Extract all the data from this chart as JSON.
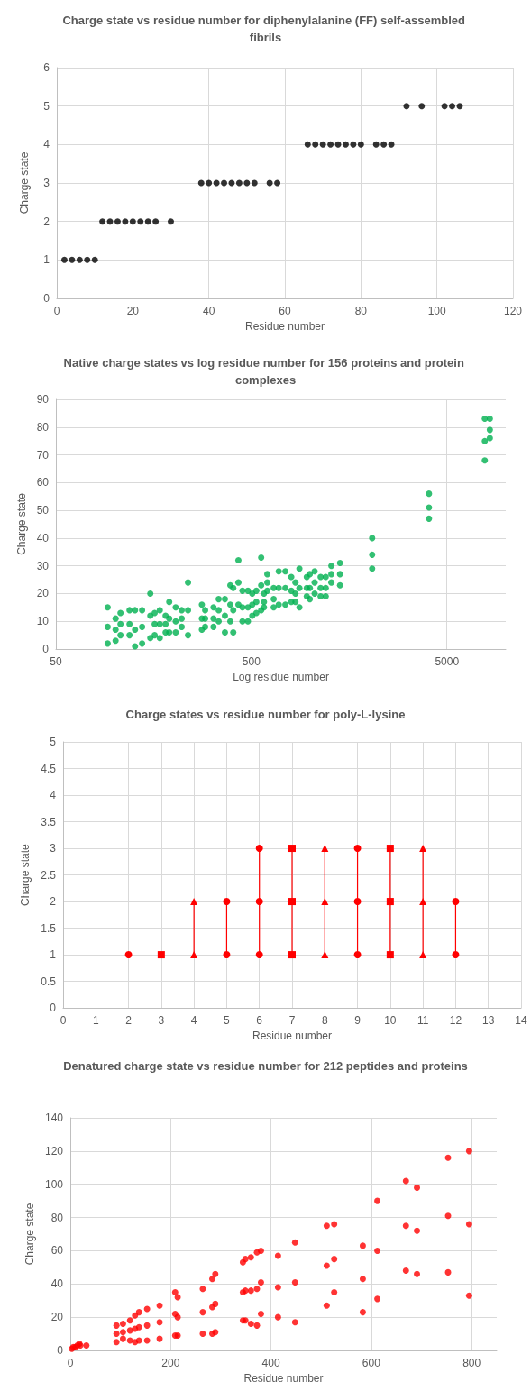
{
  "chart_data": [
    {
      "type": "scatter",
      "title": "Charge state vs residue number for diphenylalanine (FF) self-assembled fibrils",
      "xlabel": "Residue number",
      "ylabel": "Charge state",
      "color": "#000000",
      "marker": "circle",
      "grid": true,
      "xlim": [
        0,
        120
      ],
      "xticks": [
        0,
        20,
        40,
        60,
        80,
        100,
        120
      ],
      "ylim": [
        0,
        6
      ],
      "yticks": [
        0,
        1,
        2,
        3,
        4,
        5,
        6
      ],
      "x": [
        2,
        4,
        6,
        8,
        10,
        12,
        14,
        16,
        18,
        20,
        22,
        24,
        26,
        30,
        38,
        40,
        42,
        44,
        46,
        48,
        50,
        52,
        56,
        58,
        66,
        68,
        70,
        72,
        74,
        76,
        78,
        80,
        84,
        86,
        88,
        92,
        96,
        102,
        104,
        106
      ],
      "values": [
        1,
        1,
        1,
        1,
        1,
        2,
        2,
        2,
        2,
        2,
        2,
        2,
        2,
        2,
        3,
        3,
        3,
        3,
        3,
        3,
        3,
        3,
        3,
        3,
        4,
        4,
        4,
        4,
        4,
        4,
        4,
        4,
        4,
        4,
        4,
        5,
        5,
        5,
        5,
        5
      ]
    },
    {
      "type": "scatter",
      "title": "Native charge states vs log residue number for 156 proteins and protein complexes",
      "xlabel": "Log residue number",
      "ylabel": "Charge state",
      "color": "#00b050",
      "marker": "circle",
      "grid": true,
      "log": "x",
      "xlim": [
        50,
        10000
      ],
      "xticks": [
        50,
        500,
        5000
      ],
      "ylim": [
        0,
        90
      ],
      "yticks": [
        0,
        10,
        20,
        30,
        40,
        50,
        60,
        70,
        80,
        90
      ],
      "x": [
        92,
        92,
        92,
        101,
        101,
        101,
        107,
        107,
        107,
        119,
        119,
        119,
        127,
        127,
        127,
        138,
        138,
        138,
        152,
        152,
        152,
        160,
        160,
        160,
        170,
        170,
        170,
        182,
        182,
        182,
        190,
        190,
        190,
        205,
        205,
        205,
        220,
        220,
        220,
        237,
        237,
        237,
        279,
        279,
        279,
        290,
        290,
        290,
        320,
        320,
        320,
        340,
        340,
        340,
        366,
        366,
        366,
        390,
        390,
        390,
        404,
        404,
        404,
        429,
        429,
        429,
        450,
        450,
        450,
        480,
        480,
        480,
        505,
        505,
        505,
        530,
        530,
        530,
        561,
        561,
        561,
        580,
        580,
        580,
        603,
        603,
        603,
        650,
        650,
        650,
        690,
        690,
        690,
        746,
        746,
        746,
        800,
        800,
        800,
        840,
        840,
        840,
        880,
        880,
        880,
        960,
        960,
        960,
        995,
        995,
        995,
        1053,
        1053,
        1053,
        1130,
        1130,
        1130,
        1200,
        1200,
        1200,
        1282,
        1282,
        1282,
        1420,
        1420,
        1420,
        2073,
        2073,
        2073,
        4050,
        4050,
        4050,
        7815,
        7815,
        7815,
        8292,
        8292,
        8292
      ],
      "values": [
        2,
        8,
        15,
        3,
        7,
        11,
        5,
        9,
        13,
        5,
        9,
        14,
        1,
        7,
        14,
        2,
        8,
        14,
        4,
        12,
        20,
        5,
        9,
        13,
        4,
        9,
        14,
        6,
        9,
        12,
        6,
        11,
        17,
        6,
        10,
        15,
        8,
        11,
        14,
        5,
        14,
        24,
        7,
        11,
        16,
        8,
        11,
        14,
        8,
        11,
        15,
        10,
        14,
        18,
        6,
        12,
        18,
        10,
        16,
        23,
        6,
        14,
        22,
        16,
        24,
        32,
        10,
        15,
        21,
        10,
        15,
        21,
        12,
        16,
        20,
        13,
        17,
        21,
        14,
        23,
        33,
        15,
        17,
        20,
        21,
        24,
        27,
        15,
        18,
        22,
        16,
        22,
        28,
        16,
        22,
        28,
        17,
        21,
        26,
        17,
        20,
        24,
        15,
        22,
        29,
        19,
        22,
        26,
        18,
        22,
        27,
        20,
        24,
        28,
        19,
        22,
        26,
        19,
        22,
        26,
        24,
        27,
        30,
        23,
        27,
        31,
        29,
        34,
        40,
        47,
        51,
        56,
        68,
        75,
        83,
        76,
        79,
        83
      ]
    },
    {
      "type": "line",
      "title": "Charge states vs residue number for poly-L-lysine",
      "xlabel": "Residue number",
      "ylabel": "Charge state",
      "line_style": "solid",
      "grid": true,
      "xlim": [
        0,
        14
      ],
      "xticks": [
        0,
        1,
        2,
        3,
        4,
        5,
        6,
        7,
        8,
        9,
        10,
        11,
        12,
        13,
        14
      ],
      "ylim": [
        0,
        5
      ],
      "yticks": [
        0,
        0.5,
        1,
        1.5,
        2,
        2.5,
        3,
        3.5,
        4,
        4.5,
        5
      ],
      "series": [
        {
          "color": "#ff0000",
          "marker": "circle",
          "x": [
            2
          ],
          "values": [
            1
          ]
        },
        {
          "color": "#ff0000",
          "marker": "square",
          "x": [
            3
          ],
          "values": [
            1
          ]
        },
        {
          "color": "#ff0000",
          "marker": "triangle",
          "x": [
            4,
            4
          ],
          "values": [
            1,
            2
          ]
        },
        {
          "color": "#ff0000",
          "marker": "circle",
          "x": [
            5,
            5
          ],
          "values": [
            1,
            2
          ]
        },
        {
          "color": "#ff0000",
          "marker": "circle",
          "x": [
            6,
            6,
            6
          ],
          "values": [
            1,
            2,
            3
          ]
        },
        {
          "color": "#ff0000",
          "marker": "square",
          "x": [
            7,
            7,
            7
          ],
          "values": [
            1,
            2,
            3
          ]
        },
        {
          "color": "#ff0000",
          "marker": "triangle",
          "x": [
            8,
            8,
            8
          ],
          "values": [
            1,
            2,
            3
          ]
        },
        {
          "color": "#ff0000",
          "marker": "circle",
          "x": [
            9,
            9,
            9
          ],
          "values": [
            1,
            2,
            3
          ]
        },
        {
          "color": "#ff0000",
          "marker": "square",
          "x": [
            10,
            10,
            10
          ],
          "values": [
            1,
            2,
            3
          ]
        },
        {
          "color": "#ff0000",
          "marker": "triangle",
          "x": [
            11,
            11,
            11
          ],
          "values": [
            1,
            2,
            3
          ]
        },
        {
          "color": "#ff0000",
          "marker": "circle",
          "x": [
            12,
            12
          ],
          "values": [
            1,
            2
          ]
        }
      ]
    },
    {
      "type": "scatter",
      "title": "Denatured charge state vs residue number for 212 peptides and proteins",
      "xlabel": "Residue number",
      "ylabel": "Charge state",
      "color": "#ff0000",
      "marker": "circle",
      "grid": true,
      "xlim": [
        0,
        850
      ],
      "xticks": [
        0,
        200,
        400,
        600,
        800
      ],
      "ylim": [
        0,
        140
      ],
      "yticks": [
        0,
        20,
        40,
        60,
        80,
        100,
        120,
        140
      ],
      "x": [
        3,
        6,
        10,
        14,
        18,
        20,
        32,
        92,
        92,
        92,
        105,
        105,
        105,
        119,
        119,
        119,
        129,
        129,
        129,
        137,
        137,
        137,
        153,
        153,
        153,
        178,
        178,
        178,
        209,
        209,
        209,
        214,
        214,
        214,
        264,
        264,
        264,
        283,
        283,
        283,
        289,
        289,
        289,
        344,
        344,
        344,
        349,
        349,
        349,
        360,
        360,
        360,
        372,
        372,
        372,
        380,
        380,
        380,
        414,
        414,
        414,
        448,
        448,
        448,
        511,
        511,
        511,
        526,
        526,
        526,
        583,
        583,
        583,
        612,
        612,
        612,
        669,
        669,
        669,
        691,
        691,
        691,
        753,
        753,
        753,
        795,
        795,
        795
      ],
      "values": [
        1,
        2,
        2,
        3,
        4,
        3,
        3,
        5,
        10,
        15,
        7,
        11,
        16,
        6,
        12,
        18,
        5,
        13,
        21,
        6,
        14,
        23,
        6,
        15,
        25,
        7,
        17,
        27,
        9,
        22,
        35,
        9,
        20,
        32,
        10,
        23,
        37,
        10,
        26,
        43,
        11,
        28,
        46,
        18,
        35,
        53,
        18,
        36,
        55,
        16,
        36,
        56,
        15,
        37,
        59,
        22,
        41,
        60,
        20,
        38,
        57,
        17,
        41,
        65,
        27,
        51,
        75,
        35,
        55,
        76,
        23,
        43,
        63,
        31,
        60,
        90,
        48,
        75,
        102,
        46,
        72,
        98,
        47,
        81,
        116,
        33,
        76,
        120
      ]
    }
  ]
}
